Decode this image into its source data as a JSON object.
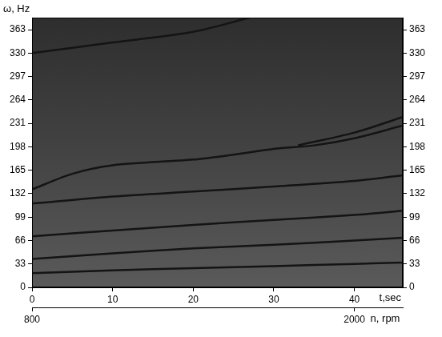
{
  "chart_data": {
    "type": "line",
    "x_label": "t,sec",
    "y_label": "ω, Hz",
    "x2_label": "n, rpm",
    "xlim": [
      0,
      46
    ],
    "xticks": [
      0,
      10,
      20,
      30,
      40
    ],
    "x2lim": [
      800,
      2180
    ],
    "x2ticks": [
      800,
      2000
    ],
    "ylim": [
      0,
      380
    ],
    "yticks": [
      0,
      33,
      66,
      99,
      132,
      165,
      198,
      231,
      264,
      297,
      330,
      363
    ],
    "y2lim": [
      0,
      380
    ],
    "y2ticks": [
      0,
      33,
      66,
      99,
      132,
      165,
      198,
      231,
      264,
      297,
      330,
      363
    ],
    "grid": false,
    "color": "#141414",
    "series": [
      {
        "x": [
          0,
          10,
          20,
          30,
          40,
          46
        ],
        "values": [
          20,
          24,
          27,
          30,
          33,
          35
        ]
      },
      {
        "x": [
          0,
          10,
          20,
          30,
          40,
          46
        ],
        "values": [
          40,
          48,
          55,
          60,
          66,
          70
        ]
      },
      {
        "x": [
          0,
          10,
          20,
          30,
          40,
          46
        ],
        "values": [
          72,
          80,
          88,
          95,
          102,
          108
        ]
      },
      {
        "x": [
          0,
          10,
          20,
          30,
          40,
          46
        ],
        "values": [
          118,
          128,
          135,
          142,
          150,
          158
        ]
      },
      {
        "x": [
          0,
          5,
          10,
          20,
          25,
          30,
          35,
          40,
          46
        ],
        "values": [
          138,
          160,
          172,
          180,
          187,
          195,
          200,
          210,
          228
        ]
      },
      {
        "x": [
          33,
          40,
          46
        ],
        "values": [
          200,
          218,
          240
        ]
      },
      {
        "x": [
          0,
          10,
          20,
          27
        ],
        "values": [
          330,
          345,
          360,
          380
        ]
      }
    ]
  }
}
